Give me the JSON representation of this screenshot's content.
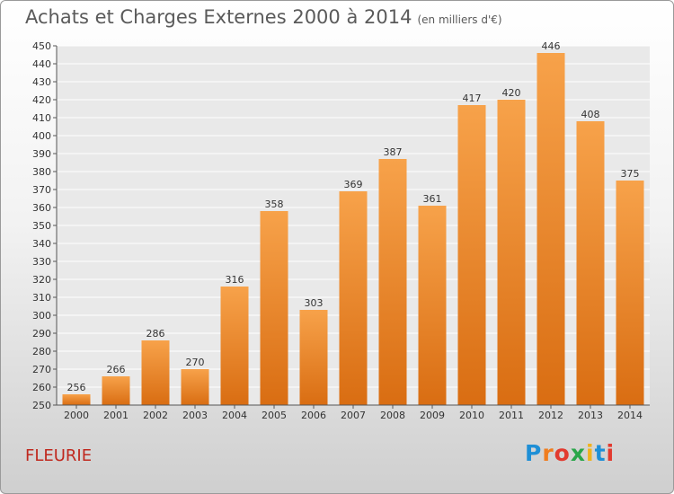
{
  "header": {
    "title": "Achats et Charges Externes 2000 à 2014",
    "unit": "(en milliers d'€)"
  },
  "place": "FLEURIE",
  "logo": {
    "text": "Proxiti",
    "colors": [
      "#1e8fd6",
      "#f07d1e",
      "#e23a2f",
      "#2aa64a",
      "#f0b21e",
      "#1e8fd6",
      "#e23a2f"
    ]
  },
  "chart_data": {
    "type": "bar",
    "categories": [
      "2000",
      "2001",
      "2002",
      "2003",
      "2004",
      "2005",
      "2006",
      "2007",
      "2008",
      "2009",
      "2010",
      "2011",
      "2012",
      "2013",
      "2014"
    ],
    "values": [
      256,
      266,
      286,
      270,
      316,
      358,
      303,
      369,
      387,
      361,
      417,
      420,
      446,
      408,
      375
    ],
    "ylim": [
      250,
      450
    ],
    "yticks": [
      250,
      260,
      270,
      280,
      290,
      300,
      310,
      320,
      330,
      340,
      350,
      360,
      370,
      380,
      390,
      400,
      410,
      420,
      430,
      440,
      450
    ],
    "title": "Achats et Charges Externes 2000 à 2014",
    "ylabel": "",
    "xlabel": "",
    "grid": true,
    "bar_color": "#f08a2a"
  }
}
